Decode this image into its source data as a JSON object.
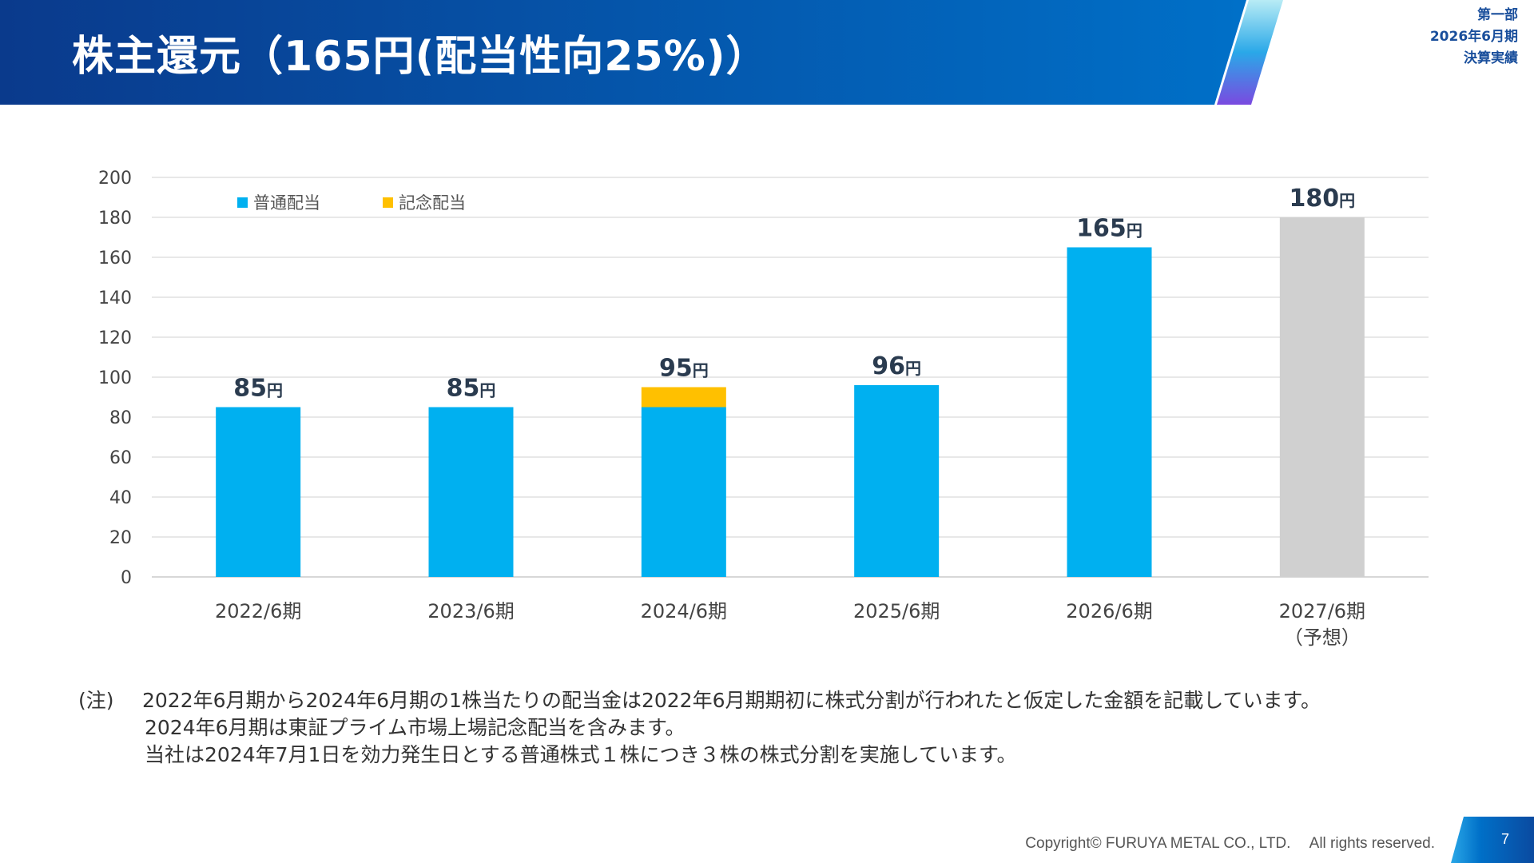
{
  "header": {
    "title": "株主還元（165円(配当性向25%)）",
    "section": "第一部",
    "period": "2026年6月期",
    "report": "決算実績"
  },
  "colors": {
    "header_start": "#0a3a8c",
    "header_end": "#0070c8",
    "regular": "#00b0f0",
    "commemorative": "#ffc000",
    "forecast": "#d0d0d0"
  },
  "chart_data": {
    "type": "bar",
    "stacked": true,
    "title": "",
    "xlabel": "",
    "ylabel": "",
    "ylim": [
      0,
      200
    ],
    "yticks": [
      0,
      20,
      40,
      60,
      80,
      100,
      120,
      140,
      160,
      180,
      200
    ],
    "grid": true,
    "legend_position": "top-left",
    "categories": [
      "2022/6期",
      "2023/6期",
      "2024/6期",
      "2025/6期",
      "2026/6期",
      "2027/6期"
    ],
    "category_sublabels": [
      "",
      "",
      "",
      "",
      "",
      "（予想）"
    ],
    "series": [
      {
        "name": "普通配当",
        "color": "#00b0f0",
        "values": [
          85,
          85,
          85,
          96,
          165,
          null
        ]
      },
      {
        "name": "記念配当",
        "color": "#ffc000",
        "values": [
          0,
          0,
          10,
          0,
          0,
          null
        ]
      },
      {
        "name": "",
        "color": "#d0d0d0",
        "values": [
          null,
          null,
          null,
          null,
          null,
          180
        ]
      }
    ],
    "totals": [
      85,
      85,
      95,
      96,
      165,
      180
    ],
    "total_labels": [
      "85",
      "85",
      "95",
      "96",
      "165",
      "180"
    ],
    "unit": "円"
  },
  "notes": {
    "prefix": "(注)",
    "lines": [
      "2022年6月期から2024年6月期の1株当たりの配当金は2022年6月期期初に株式分割が行われたと仮定した金額を記載しています。",
      "2024年6月期は東証プライム市場上場記念配当を含みます。",
      "当社は2024年7月1日を効力発生日とする普通株式１株につき３株の株式分割を実施しています。"
    ]
  },
  "footer": {
    "copyright": "Copyright© FURUYA METAL CO., LTD.　 All rights reserved.",
    "page": "7"
  }
}
